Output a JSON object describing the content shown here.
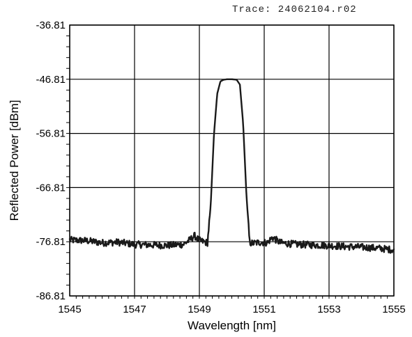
{
  "trace_label": "Trace: 24062104.r02",
  "chart_data": {
    "type": "line",
    "title": "",
    "xlabel": "Wavelength [nm]",
    "ylabel": "Reflected Power [dBm]",
    "xlim": [
      1545,
      1555
    ],
    "ylim": [
      -86.81,
      -36.81
    ],
    "xticks": [
      "1545",
      "1547",
      "1549",
      "1551",
      "1553",
      "1555"
    ],
    "yticks": [
      "-36.81",
      "-46.81",
      "-56.81",
      "-66.81",
      "-76.81",
      "-86.81"
    ],
    "grid": true,
    "legend": "none",
    "series": [
      {
        "x": [
          1545.0,
          1545.5,
          1546.0,
          1546.5,
          1547.0,
          1547.5,
          1548.0,
          1548.5,
          1548.7,
          1548.85,
          1549.0,
          1549.25,
          1549.35,
          1549.45,
          1549.55,
          1549.65,
          1549.75,
          1549.85,
          1550.0,
          1550.15,
          1550.25,
          1550.35,
          1550.45,
          1550.55,
          1550.65,
          1550.75,
          1550.9,
          1551.1,
          1551.25,
          1551.5,
          1552.0,
          1552.5,
          1553.0,
          1553.5,
          1554.0,
          1554.5,
          1555.0
        ],
        "y": [
          -76.5,
          -76.6,
          -77.0,
          -76.9,
          -77.3,
          -77.4,
          -77.5,
          -77.3,
          -76.5,
          -75.7,
          -76.6,
          -77.0,
          -70.0,
          -57.0,
          -49.5,
          -47.2,
          -46.9,
          -46.81,
          -46.81,
          -46.9,
          -47.8,
          -55.0,
          -68.0,
          -77.0,
          -77.1,
          -77.0,
          -76.9,
          -77.0,
          -76.0,
          -77.0,
          -77.3,
          -77.4,
          -77.5,
          -77.7,
          -77.8,
          -78.0,
          -78.3
        ],
        "color": "#1a1a1a"
      }
    ]
  }
}
